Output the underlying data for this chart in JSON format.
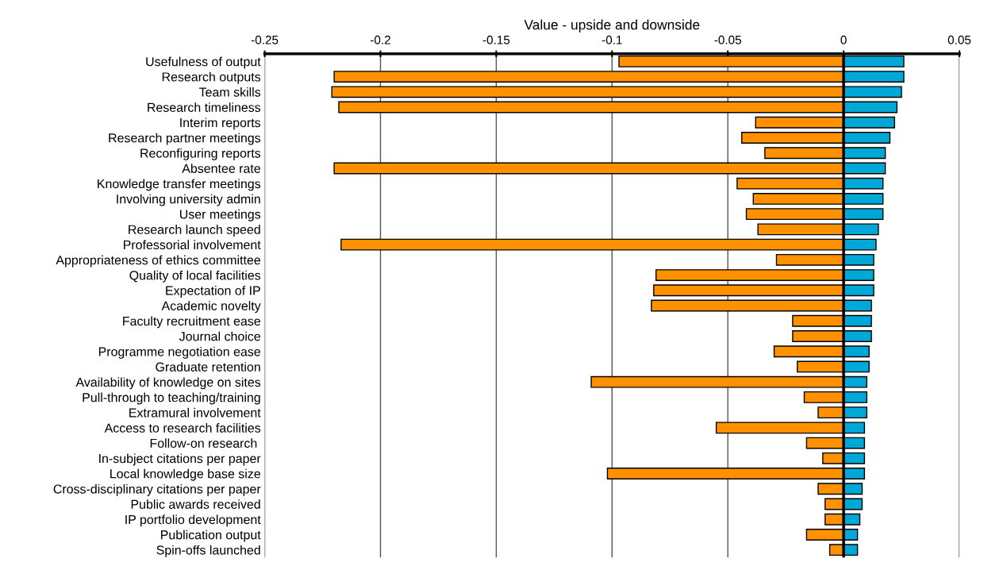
{
  "chart_data": {
    "type": "bar",
    "orientation": "horizontal",
    "title": "Value - upside and downside",
    "categories": [
      "Usefulness of output",
      "Research outputs",
      "Team skills",
      "Research timeliness",
      "Interim reports",
      "Research partner meetings",
      "Reconfiguring reports",
      "Absentee rate",
      "Knowledge transfer meetings",
      "Involving university admin",
      "User meetings",
      "Research launch speed",
      "Professorial involvement",
      "Appropriateness of ethics committee",
      "Quality of local facilities",
      "Expectation of IP",
      "Academic novelty",
      "Faculty recruitment ease",
      "Journal choice",
      "Programme negotiation ease",
      "Graduate retention",
      "Availability of knowledge on sites",
      "Pull-through to teaching/training",
      "Extramural involvement",
      "Access to research facilities",
      "Follow-on research ",
      "In-subject citations per paper",
      "Local knowledge base size",
      "Cross-disciplinary citations per paper",
      "Public awards received",
      "IP portfolio development",
      "Publication output",
      "Spin-offs launched"
    ],
    "series": [
      {
        "color": "#ff9000",
        "values": [
          -0.097,
          -0.22,
          -0.221,
          -0.218,
          -0.038,
          -0.044,
          -0.034,
          -0.22,
          -0.046,
          -0.039,
          -0.042,
          -0.037,
          -0.217,
          -0.029,
          -0.081,
          -0.082,
          -0.083,
          -0.022,
          -0.022,
          -0.03,
          -0.02,
          -0.109,
          -0.017,
          -0.011,
          -0.055,
          -0.016,
          -0.009,
          -0.102,
          -0.011,
          -0.008,
          -0.008,
          -0.016,
          -0.006
        ]
      },
      {
        "color": "#00a8d8",
        "values": [
          0.026,
          0.026,
          0.025,
          0.023,
          0.022,
          0.02,
          0.018,
          0.018,
          0.017,
          0.017,
          0.017,
          0.015,
          0.014,
          0.013,
          0.013,
          0.013,
          0.012,
          0.012,
          0.012,
          0.011,
          0.011,
          0.01,
          0.01,
          0.01,
          0.009,
          0.009,
          0.009,
          0.009,
          0.008,
          0.008,
          0.007,
          0.006,
          0.006
        ]
      }
    ],
    "xlim": [
      -0.25,
      0.05
    ],
    "xticks": [
      -0.25,
      -0.2,
      -0.15,
      -0.1,
      -0.05,
      0,
      0.05
    ],
    "grid": "x",
    "stacked": true,
    "ref_lines": [
      {
        "axis": "x",
        "value": 0,
        "color": "#000000"
      }
    ]
  }
}
